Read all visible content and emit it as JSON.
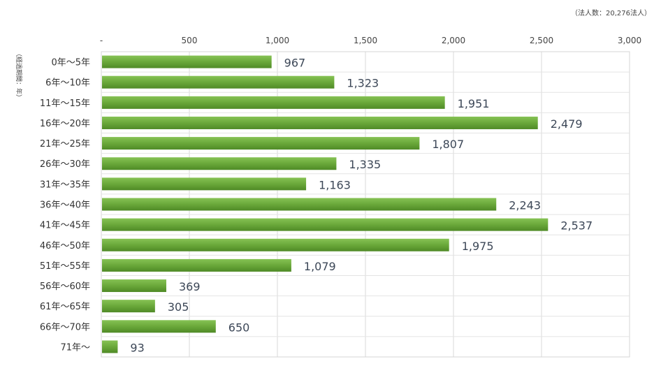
{
  "chart_data": {
    "type": "bar",
    "orientation": "horizontal",
    "note": "（法人数：20,276法人）",
    "ylabel": "（経過期間：年）",
    "xlabel": "",
    "xlim": [
      0,
      3000
    ],
    "x_ticks": [
      0,
      500,
      1000,
      1500,
      2000,
      2500,
      3000
    ],
    "x_tick_labels": [
      "-",
      "500",
      "1,000",
      "1,500",
      "2,000",
      "2,500",
      "3,000"
    ],
    "grid": true,
    "legend": "none",
    "bar_color": "#6aa83a",
    "categories": [
      "0年～5年",
      "6年～10年",
      "11年～15年",
      "16年～20年",
      "21年～25年",
      "26年～30年",
      "31年～35年",
      "36年～40年",
      "41年～45年",
      "46年～50年",
      "51年～55年",
      "56年～60年",
      "61年～65年",
      "66年～70年",
      "71年～"
    ],
    "values": [
      967,
      1323,
      1951,
      2479,
      1807,
      1335,
      1163,
      2243,
      2537,
      1975,
      1079,
      369,
      305,
      650,
      93
    ],
    "value_labels": [
      "967",
      "1,323",
      "1,951",
      "2,479",
      "1,807",
      "1,335",
      "1,163",
      "2,243",
      "2,537",
      "1,975",
      "1,079",
      "369",
      "305",
      "650",
      "93"
    ]
  }
}
